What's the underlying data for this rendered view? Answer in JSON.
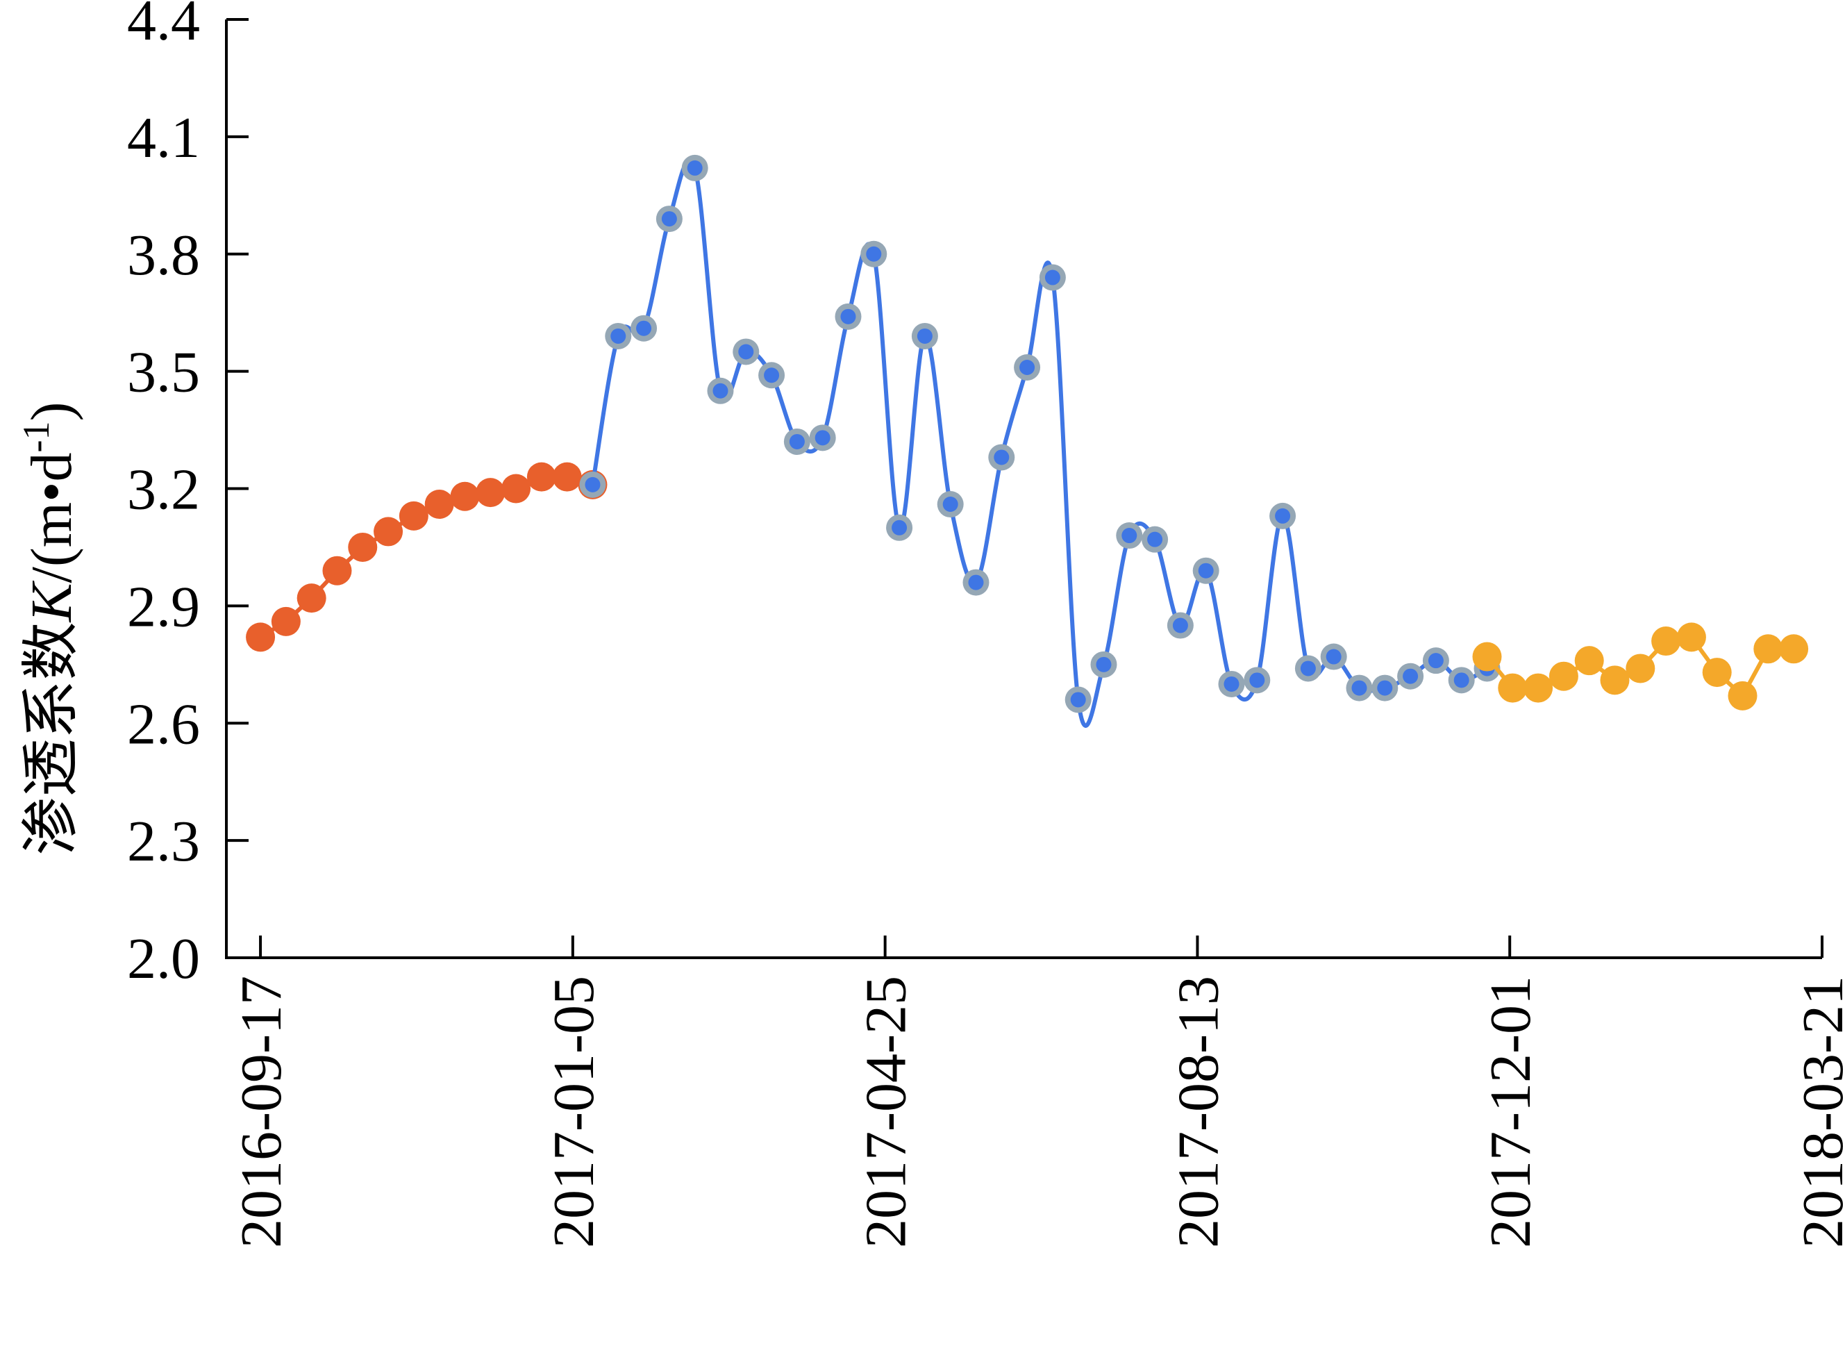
{
  "chart_data": {
    "type": "line",
    "ylabel": "渗透系数K/(m•d⁻¹)",
    "ylabel_parts": {
      "pre": "渗透系数",
      "k": "K",
      "unit": "/(m•d",
      "sup": "-1",
      "close": ")"
    },
    "ylim": [
      2.0,
      4.4
    ],
    "yticks": [
      "2.0",
      "2.3",
      "2.6",
      "2.9",
      "3.2",
      "3.5",
      "3.8",
      "4.1",
      "4.4"
    ],
    "xlim": [
      "2016-09-05",
      "2018-03-21"
    ],
    "xticks": [
      "2016-09-17",
      "2017-01-05",
      "2017-04-25",
      "2017-08-13",
      "2017-12-01",
      "2018-03-21"
    ],
    "grid": false,
    "series": [
      {
        "style": "filled-dots",
        "color": "#E8602C",
        "x": [
          "2016-09-17",
          "2016-09-26",
          "2016-10-05",
          "2016-10-14",
          "2016-10-23",
          "2016-11-01",
          "2016-11-10",
          "2016-11-19",
          "2016-11-28",
          "2016-12-07",
          "2016-12-16",
          "2016-12-25",
          "2017-01-03",
          "2017-01-12"
        ],
        "values": [
          2.82,
          2.86,
          2.92,
          2.99,
          3.05,
          3.09,
          3.13,
          3.16,
          3.18,
          3.19,
          3.2,
          3.23,
          3.23,
          3.21
        ]
      },
      {
        "style": "smooth-line-ringed-dots",
        "color": "#3F76E4",
        "ring_color": "#95A7B5",
        "x": [
          "2017-01-12",
          "2017-01-21",
          "2017-01-30",
          "2017-02-08",
          "2017-02-17",
          "2017-02-26",
          "2017-03-07",
          "2017-03-16",
          "2017-03-25",
          "2017-04-03",
          "2017-04-12",
          "2017-04-21",
          "2017-04-30",
          "2017-05-09",
          "2017-05-18",
          "2017-05-27",
          "2017-06-05",
          "2017-06-14",
          "2017-06-23",
          "2017-07-02",
          "2017-07-11",
          "2017-07-20",
          "2017-07-29",
          "2017-08-07",
          "2017-08-16",
          "2017-08-25",
          "2017-09-03",
          "2017-09-12",
          "2017-09-21",
          "2017-09-30",
          "2017-10-09",
          "2017-10-18",
          "2017-10-27",
          "2017-11-05",
          "2017-11-14",
          "2017-11-23"
        ],
        "values": [
          3.21,
          3.59,
          3.61,
          3.89,
          4.02,
          3.45,
          3.55,
          3.49,
          3.32,
          3.33,
          3.64,
          3.8,
          3.1,
          3.59,
          3.16,
          2.96,
          3.28,
          3.51,
          3.74,
          2.66,
          2.75,
          3.08,
          3.07,
          2.85,
          2.99,
          2.7,
          2.71,
          3.13,
          2.74,
          2.77,
          2.69,
          2.69,
          2.72,
          2.76,
          2.71,
          2.74
        ]
      },
      {
        "style": "filled-dots",
        "color": "#F4A82A",
        "x": [
          "2017-11-23",
          "2017-12-02",
          "2017-12-11",
          "2017-12-20",
          "2017-12-29",
          "2018-01-07",
          "2018-01-16",
          "2018-01-25",
          "2018-02-03",
          "2018-02-12",
          "2018-02-21",
          "2018-03-02",
          "2018-03-11"
        ],
        "values": [
          2.77,
          2.69,
          2.69,
          2.72,
          2.76,
          2.71,
          2.74,
          2.81,
          2.82,
          2.73,
          2.67,
          2.79,
          2.79
        ]
      }
    ]
  }
}
